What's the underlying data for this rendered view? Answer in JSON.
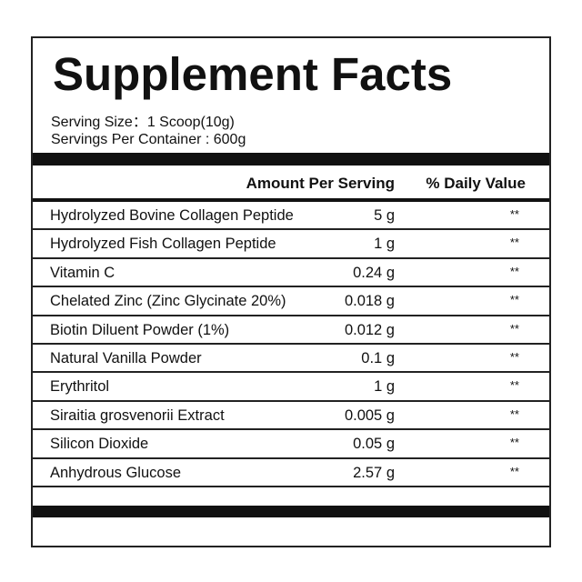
{
  "title": "Supplement Facts",
  "serving_size": "Serving Size：1 Scoop(10g)",
  "servings_per_container": "Servings Per Container : 600g",
  "headers": {
    "amount": "Amount Per Serving",
    "daily_value": "% Daily Value"
  },
  "rows": [
    {
      "name": "Hydrolyzed Bovine Collagen Peptide",
      "amount": "5 g",
      "dv": "**"
    },
    {
      "name": "Hydrolyzed Fish Collagen Peptide",
      "amount": "1 g",
      "dv": "**"
    },
    {
      "name": "Vitamin C",
      "amount": "0.24 g",
      "dv": "**"
    },
    {
      "name": "Chelated Zinc (Zinc Glycinate 20%)",
      "amount": "0.018 g",
      "dv": "**"
    },
    {
      "name": "Biotin Diluent Powder (1%)",
      "amount": "0.012 g",
      "dv": "**"
    },
    {
      "name": "Natural Vanilla Powder",
      "amount": "0.1 g",
      "dv": "**"
    },
    {
      "name": "Erythritol",
      "amount": "1 g",
      "dv": "**"
    },
    {
      "name": "Siraitia grosvenorii Extract",
      "amount": "0.005 g",
      "dv": "**"
    },
    {
      "name": "Silicon Dioxide",
      "amount": "0.05 g",
      "dv": "**"
    },
    {
      "name": "Anhydrous Glucose",
      "amount": "2.57 g",
      "dv": "**"
    }
  ]
}
